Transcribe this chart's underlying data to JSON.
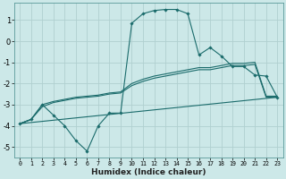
{
  "xlabel": "Humidex (Indice chaleur)",
  "bg_color": "#cce8e8",
  "grid_color": "#b0d0d0",
  "line_color": "#1a6b6b",
  "xlim": [
    -0.5,
    23.5
  ],
  "ylim": [
    -5.5,
    1.8
  ],
  "yticks": [
    -5,
    -4,
    -3,
    -2,
    -1,
    0,
    1
  ],
  "xticks": [
    0,
    1,
    2,
    3,
    4,
    5,
    6,
    7,
    8,
    9,
    10,
    11,
    12,
    13,
    14,
    15,
    16,
    17,
    18,
    19,
    20,
    21,
    22,
    23
  ],
  "line1_x": [
    0,
    1,
    2,
    3,
    4,
    5,
    6,
    7,
    8,
    9,
    10,
    11,
    12,
    13,
    14,
    15,
    16,
    17,
    18,
    19,
    20,
    21,
    22,
    23
  ],
  "line1_y": [
    -3.9,
    -3.7,
    -3.0,
    -3.5,
    -4.0,
    -4.7,
    -5.2,
    -4.0,
    -3.4,
    -3.4,
    0.85,
    1.3,
    1.45,
    1.5,
    1.5,
    1.3,
    -0.65,
    -0.3,
    -0.7,
    -1.2,
    -1.2,
    -1.6,
    -1.65,
    -2.65
  ],
  "line2_x": [
    0,
    23
  ],
  "line2_y": [
    -3.9,
    -2.65
  ],
  "line3_x": [
    0,
    1,
    2,
    3,
    4,
    5,
    6,
    7,
    8,
    9,
    10,
    11,
    12,
    13,
    14,
    15,
    16,
    17,
    18,
    19,
    20,
    21,
    22,
    23
  ],
  "line3_y": [
    -3.9,
    -3.7,
    -3.1,
    -2.9,
    -2.8,
    -2.7,
    -2.65,
    -2.6,
    -2.5,
    -2.45,
    -2.1,
    -1.9,
    -1.75,
    -1.65,
    -1.55,
    -1.45,
    -1.35,
    -1.35,
    -1.25,
    -1.15,
    -1.15,
    -1.1,
    -2.65,
    -2.65
  ],
  "line4_x": [
    0,
    1,
    2,
    3,
    4,
    5,
    6,
    7,
    8,
    9,
    10,
    11,
    12,
    13,
    14,
    15,
    16,
    17,
    18,
    19,
    20,
    21,
    22,
    23
  ],
  "line4_y": [
    -3.9,
    -3.7,
    -3.0,
    -2.85,
    -2.75,
    -2.65,
    -2.6,
    -2.55,
    -2.45,
    -2.4,
    -2.0,
    -1.8,
    -1.65,
    -1.55,
    -1.45,
    -1.35,
    -1.25,
    -1.25,
    -1.15,
    -1.05,
    -1.05,
    -1.0,
    -2.6,
    -2.6
  ]
}
